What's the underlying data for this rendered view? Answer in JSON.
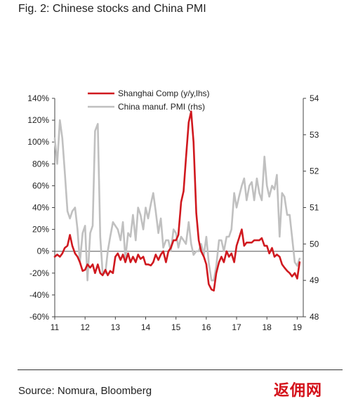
{
  "figure": {
    "title": "Fig. 2: Chinese stocks and China PMI",
    "source": "Source: Nomura, Bloomberg",
    "watermark": "返佣网"
  },
  "chart_data": {
    "type": "line",
    "series": [
      {
        "name": "Shanghai Comp (y/y,lhs)",
        "axis": "left",
        "color": "#d0191f",
        "x": [
          11.0,
          11.08,
          11.17,
          11.25,
          11.33,
          11.42,
          11.5,
          11.58,
          11.67,
          11.75,
          11.83,
          11.92,
          12.0,
          12.08,
          12.17,
          12.25,
          12.33,
          12.42,
          12.5,
          12.58,
          12.67,
          12.75,
          12.83,
          12.92,
          13.0,
          13.08,
          13.17,
          13.25,
          13.33,
          13.42,
          13.5,
          13.58,
          13.67,
          13.75,
          13.83,
          13.92,
          14.0,
          14.08,
          14.17,
          14.25,
          14.33,
          14.42,
          14.5,
          14.58,
          14.67,
          14.75,
          14.83,
          14.92,
          15.0,
          15.08,
          15.17,
          15.25,
          15.33,
          15.42,
          15.5,
          15.58,
          15.67,
          15.75,
          15.83,
          15.92,
          16.0,
          16.08,
          16.17,
          16.25,
          16.33,
          16.42,
          16.5,
          16.58,
          16.67,
          16.75,
          16.83,
          16.92,
          17.0,
          17.08,
          17.17,
          17.25,
          17.33,
          17.42,
          17.5,
          17.58,
          17.67,
          17.75,
          17.83,
          17.92,
          18.0,
          18.08,
          18.17,
          18.25,
          18.33,
          18.42,
          18.5,
          18.58,
          18.67,
          18.75,
          18.83,
          18.92,
          19.0,
          19.08
        ],
        "values": [
          -5,
          -3,
          -5,
          -2,
          3,
          5,
          15,
          5,
          -2,
          -5,
          -10,
          -18,
          -17,
          -12,
          -15,
          -12,
          -20,
          -12,
          -20,
          -22,
          -17,
          -22,
          -18,
          -20,
          -5,
          -2,
          -8,
          -3,
          -10,
          -2,
          -10,
          -5,
          -10,
          -3,
          -7,
          -5,
          -12,
          -12,
          -13,
          -10,
          -3,
          -8,
          -3,
          0,
          -10,
          0,
          3,
          10,
          10,
          15,
          45,
          55,
          85,
          118,
          128,
          100,
          35,
          10,
          0,
          -5,
          -12,
          -30,
          -35,
          -36,
          -20,
          -10,
          -5,
          -10,
          0,
          -5,
          -2,
          -10,
          5,
          12,
          20,
          5,
          8,
          8,
          8,
          10,
          10,
          10,
          12,
          5,
          5,
          -2,
          3,
          -5,
          -3,
          -5,
          -12,
          -15,
          -18,
          -20,
          -23,
          -20,
          -25,
          -10
        ]
      },
      {
        "name": "China manuf. PMI (rhs)",
        "axis": "right",
        "color": "#c0c0c0",
        "x": [
          11.0,
          11.08,
          11.17,
          11.25,
          11.33,
          11.42,
          11.5,
          11.58,
          11.67,
          11.75,
          11.83,
          11.92,
          12.0,
          12.08,
          12.17,
          12.25,
          12.33,
          12.42,
          12.5,
          12.58,
          12.67,
          12.75,
          12.83,
          12.92,
          13.0,
          13.08,
          13.17,
          13.25,
          13.33,
          13.42,
          13.5,
          13.58,
          13.67,
          13.75,
          13.83,
          13.92,
          14.0,
          14.08,
          14.17,
          14.25,
          14.33,
          14.42,
          14.5,
          14.58,
          14.67,
          14.75,
          14.83,
          14.92,
          15.0,
          15.08,
          15.17,
          15.25,
          15.33,
          15.42,
          15.5,
          15.58,
          15.67,
          15.75,
          15.83,
          15.92,
          16.0,
          16.08,
          16.17,
          16.25,
          16.33,
          16.42,
          16.5,
          16.58,
          16.67,
          16.75,
          16.83,
          16.92,
          17.0,
          17.08,
          17.17,
          17.25,
          17.33,
          17.42,
          17.5,
          17.58,
          17.67,
          17.75,
          17.83,
          17.92,
          18.0,
          18.08,
          18.17,
          18.25,
          18.33,
          18.42,
          18.5,
          18.58,
          18.67,
          18.75,
          18.83,
          18.92,
          19.0,
          19.08
        ],
        "values": [
          52.9,
          52.2,
          53.4,
          52.9,
          52.0,
          50.9,
          50.7,
          50.9,
          51.0,
          50.4,
          49.5,
          50.3,
          50.5,
          49.0,
          50.3,
          50.5,
          53.1,
          53.3,
          50.2,
          49.2,
          49.2,
          49.8,
          50.2,
          50.6,
          50.5,
          50.4,
          50.1,
          50.6,
          49.6,
          50.3,
          50.2,
          50.8,
          50.1,
          51.0,
          50.8,
          50.4,
          51.0,
          50.7,
          51.1,
          51.4,
          50.9,
          50.3,
          50.7,
          49.9,
          50.1,
          50.1,
          49.8,
          50.4,
          50.3,
          49.9,
          50.2,
          50.1,
          50.0,
          50.6,
          50.0,
          49.7,
          49.8,
          49.8,
          50.0,
          49.7,
          50.2,
          49.5,
          49.0,
          49.0,
          49.4,
          50.1,
          50.1,
          49.8,
          50.2,
          50.2,
          50.4,
          51.4,
          51.0,
          51.3,
          51.6,
          51.8,
          51.2,
          51.6,
          51.7,
          51.2,
          51.8,
          51.4,
          51.2,
          52.4,
          51.6,
          51.3,
          51.6,
          51.5,
          51.9,
          50.2,
          51.4,
          51.3,
          50.8,
          50.8,
          50.2,
          49.5,
          49.4,
          49.6
        ]
      }
    ],
    "xaxis": {
      "ticks": [
        11,
        12,
        13,
        14,
        15,
        16,
        17,
        18,
        19
      ],
      "range": [
        11,
        19.2
      ]
    },
    "yaxis_left": {
      "ticks": [
        140,
        120,
        100,
        80,
        60,
        40,
        20,
        0,
        -20,
        -40,
        -60
      ],
      "tick_labels": [
        "140%",
        "120%",
        "100%",
        "80%",
        "60%",
        "40%",
        "20%",
        "0%",
        "-20%",
        "-40%",
        "-60%"
      ],
      "range": [
        -60,
        140
      ]
    },
    "yaxis_right": {
      "ticks": [
        54,
        53,
        52,
        51,
        50,
        49,
        48
      ],
      "tick_labels": [
        "54",
        "53",
        "52",
        "51",
        "50",
        "49",
        "48"
      ],
      "range": [
        48,
        54
      ]
    },
    "reference_line": 0,
    "legend_position": "top-left",
    "grid": false
  }
}
